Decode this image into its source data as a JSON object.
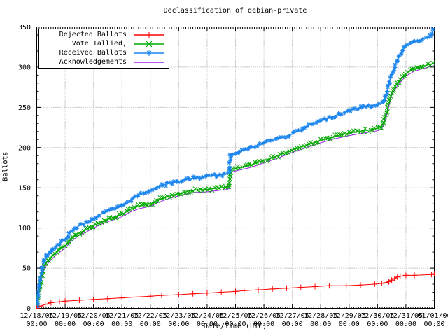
{
  "colors": {
    "background": "#ffffff",
    "axis": "#000000",
    "grid": "#9c9c9c",
    "rejected": "#ff0000",
    "tallied": "#00a800",
    "received": "#1c86ee",
    "acknowledgements": "#a020f0"
  },
  "chart_data": {
    "type": "line",
    "title": "Declassification of debian-private",
    "xlabel": "Date/Time (UTC)",
    "ylabel": "Ballots",
    "ylim": [
      0,
      350
    ],
    "x_range_days": [
      0,
      14
    ],
    "grid": "dotted",
    "legend_position": "top-left",
    "y_ticks": [
      "0",
      "50",
      "100",
      "150",
      "200",
      "250",
      "300",
      "350"
    ],
    "x_ticks": [
      {
        "date": "12/18/05",
        "time": "00:00"
      },
      {
        "date": "12/19/05",
        "time": "00:00"
      },
      {
        "date": "12/20/05",
        "time": "00:00"
      },
      {
        "date": "12/21/05",
        "time": "00:00"
      },
      {
        "date": "12/22/05",
        "time": "00:00"
      },
      {
        "date": "12/23/05",
        "time": "00:00"
      },
      {
        "date": "12/24/05",
        "time": "00:00"
      },
      {
        "date": "12/25/05",
        "time": "00:00"
      },
      {
        "date": "12/26/05",
        "time": "00:00"
      },
      {
        "date": "12/27/05",
        "time": "00:00"
      },
      {
        "date": "12/28/05",
        "time": "00:00"
      },
      {
        "date": "12/29/05",
        "time": "00:00"
      },
      {
        "date": "12/30/05",
        "time": "00:00"
      },
      {
        "date": "12/31/05",
        "time": "00:00"
      },
      {
        "date": "01/01/06",
        "time": "00:00"
      }
    ],
    "series": [
      {
        "name": "Rejected Ballots",
        "slug": "rejected-ballots",
        "color": "#ff0000",
        "marker": "plus",
        "band": false,
        "points": [
          [
            0,
            0
          ],
          [
            0.15,
            3
          ],
          [
            0.3,
            5
          ],
          [
            0.5,
            7
          ],
          [
            0.8,
            8
          ],
          [
            1,
            9
          ],
          [
            1.5,
            10
          ],
          [
            2,
            11
          ],
          [
            2.5,
            12
          ],
          [
            3,
            13
          ],
          [
            3.5,
            14
          ],
          [
            4,
            15
          ],
          [
            4.4,
            16
          ],
          [
            5,
            17
          ],
          [
            5.5,
            18
          ],
          [
            6,
            19
          ],
          [
            6.5,
            20
          ],
          [
            7,
            21
          ],
          [
            7.3,
            22
          ],
          [
            7.8,
            23
          ],
          [
            8.3,
            24
          ],
          [
            8.8,
            25
          ],
          [
            9.3,
            26
          ],
          [
            9.8,
            27
          ],
          [
            10.3,
            28
          ],
          [
            10.9,
            28
          ],
          [
            11.4,
            29
          ],
          [
            11.9,
            30
          ],
          [
            12.15,
            31
          ],
          [
            12.3,
            32
          ],
          [
            12.4,
            33
          ],
          [
            12.5,
            35
          ],
          [
            12.6,
            37
          ],
          [
            12.7,
            39
          ],
          [
            12.8,
            40
          ],
          [
            13,
            41
          ],
          [
            13.3,
            41
          ],
          [
            13.9,
            42
          ],
          [
            14,
            43
          ]
        ]
      },
      {
        "name": "Vote Tallied,",
        "slug": "vote-tallied",
        "color": "#00a800",
        "marker": "cross",
        "band": true,
        "points": [
          [
            0,
            0
          ],
          [
            0.1,
            25
          ],
          [
            0.2,
            45
          ],
          [
            0.3,
            55
          ],
          [
            0.5,
            63
          ],
          [
            0.7,
            70
          ],
          [
            1,
            78
          ],
          [
            1.2,
            86
          ],
          [
            1.5,
            94
          ],
          [
            1.8,
            99
          ],
          [
            2,
            103
          ],
          [
            2.3,
            108
          ],
          [
            2.6,
            112
          ],
          [
            3,
            117
          ],
          [
            3.3,
            123
          ],
          [
            3.6,
            127
          ],
          [
            4,
            130
          ],
          [
            4.3,
            135
          ],
          [
            4.6,
            139
          ],
          [
            5,
            143
          ],
          [
            5.5,
            147
          ],
          [
            6,
            148
          ],
          [
            6.7,
            151
          ],
          [
            6.78,
            152
          ],
          [
            6.82,
            172
          ],
          [
            7,
            174
          ],
          [
            7.5,
            178
          ],
          [
            8,
            184
          ],
          [
            8.5,
            190
          ],
          [
            9,
            197
          ],
          [
            9.5,
            203
          ],
          [
            10,
            209
          ],
          [
            10.5,
            214
          ],
          [
            11,
            218
          ],
          [
            11.5,
            221
          ],
          [
            12,
            224
          ],
          [
            12.15,
            226
          ],
          [
            12.3,
            240
          ],
          [
            12.5,
            268
          ],
          [
            12.7,
            280
          ],
          [
            13,
            292
          ],
          [
            13.3,
            298
          ],
          [
            13.6,
            301
          ],
          [
            14,
            305
          ]
        ]
      },
      {
        "name": "Received Ballots",
        "slug": "received-ballots",
        "color": "#1c86ee",
        "marker": "star",
        "band": true,
        "points": [
          [
            0,
            0
          ],
          [
            0.1,
            30
          ],
          [
            0.2,
            52
          ],
          [
            0.3,
            62
          ],
          [
            0.5,
            70
          ],
          [
            0.7,
            78
          ],
          [
            1,
            86
          ],
          [
            1.2,
            95
          ],
          [
            1.5,
            103
          ],
          [
            1.8,
            108
          ],
          [
            2,
            112
          ],
          [
            2.3,
            118
          ],
          [
            2.6,
            122
          ],
          [
            3,
            127
          ],
          [
            3.3,
            135
          ],
          [
            3.6,
            141
          ],
          [
            4,
            147
          ],
          [
            4.3,
            152
          ],
          [
            4.6,
            155
          ],
          [
            5,
            158
          ],
          [
            5.5,
            162
          ],
          [
            6,
            164
          ],
          [
            6.7,
            167
          ],
          [
            6.78,
            168
          ],
          [
            6.82,
            192
          ],
          [
            7,
            194
          ],
          [
            7.5,
            199
          ],
          [
            8,
            206
          ],
          [
            8.3,
            210
          ],
          [
            8.6,
            212
          ],
          [
            9,
            217
          ],
          [
            9.3,
            222
          ],
          [
            9.6,
            228
          ],
          [
            10,
            233
          ],
          [
            10.3,
            237
          ],
          [
            10.6,
            241
          ],
          [
            11,
            246
          ],
          [
            11.3,
            249
          ],
          [
            11.6,
            251
          ],
          [
            12,
            253
          ],
          [
            12.15,
            255
          ],
          [
            12.3,
            265
          ],
          [
            12.5,
            292
          ],
          [
            12.7,
            309
          ],
          [
            12.9,
            322
          ],
          [
            13,
            326
          ],
          [
            13.3,
            331
          ],
          [
            13.6,
            335
          ],
          [
            13.9,
            340
          ],
          [
            14,
            348
          ]
        ]
      },
      {
        "name": "Acknowledgements",
        "slug": "acknowledgements",
        "color": "#a020f0",
        "marker": "none",
        "band": false,
        "points": [
          [
            0,
            0
          ],
          [
            0.1,
            22
          ],
          [
            0.2,
            42
          ],
          [
            0.3,
            52
          ],
          [
            0.5,
            60
          ],
          [
            0.7,
            67
          ],
          [
            1,
            75
          ],
          [
            1.2,
            83
          ],
          [
            1.5,
            91
          ],
          [
            1.8,
            96
          ],
          [
            2,
            100
          ],
          [
            2.3,
            105
          ],
          [
            2.6,
            109
          ],
          [
            3,
            114
          ],
          [
            3.3,
            120
          ],
          [
            3.6,
            124
          ],
          [
            4,
            127
          ],
          [
            4.3,
            132
          ],
          [
            4.6,
            136
          ],
          [
            5,
            140
          ],
          [
            5.5,
            144
          ],
          [
            6,
            145
          ],
          [
            6.7,
            148
          ],
          [
            6.78,
            149
          ],
          [
            6.82,
            169
          ],
          [
            7,
            171
          ],
          [
            7.5,
            175
          ],
          [
            8,
            181
          ],
          [
            8.5,
            187
          ],
          [
            9,
            194
          ],
          [
            9.5,
            200
          ],
          [
            10,
            206
          ],
          [
            10.5,
            211
          ],
          [
            11,
            215
          ],
          [
            11.5,
            218
          ],
          [
            12,
            221
          ],
          [
            12.15,
            223
          ],
          [
            12.3,
            237
          ],
          [
            12.5,
            265
          ],
          [
            12.7,
            277
          ],
          [
            13,
            289
          ],
          [
            13.3,
            295
          ],
          [
            13.6,
            298
          ],
          [
            14,
            302
          ]
        ]
      }
    ]
  }
}
